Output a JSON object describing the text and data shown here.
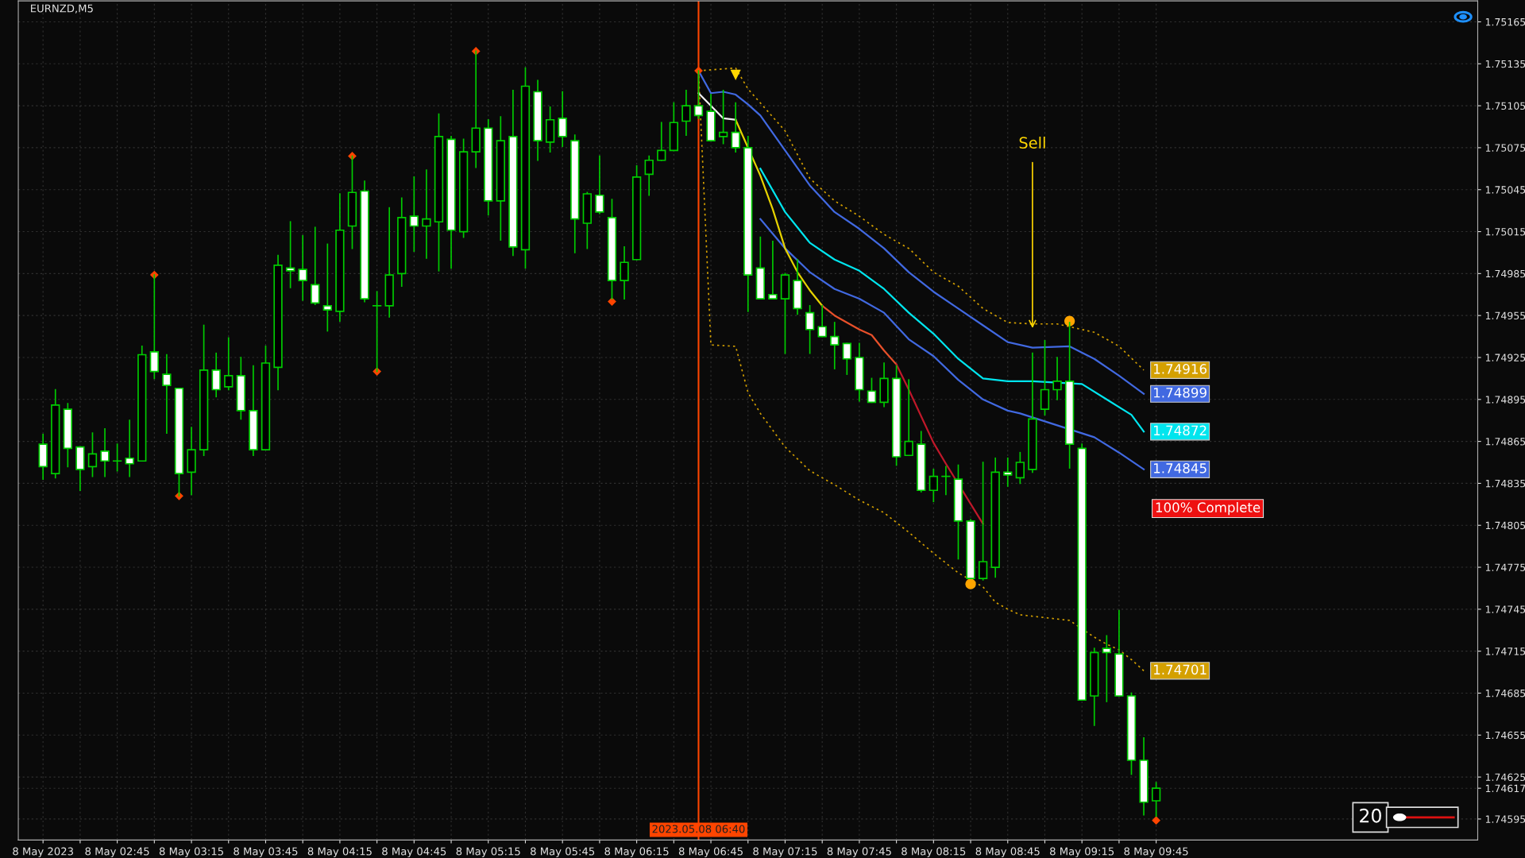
{
  "chart_data": {
    "type": "candlestick",
    "title": "EURNZD,M5",
    "color": "#00cc00",
    "x": [
      "2023-05-08T02:15",
      "2023-05-08T02:20",
      "2023-05-08T02:25",
      "2023-05-08T02:30",
      "2023-05-08T02:35",
      "2023-05-08T02:40",
      "2023-05-08T02:45",
      "2023-05-08T02:50",
      "2023-05-08T02:55",
      "2023-05-08T03:00",
      "2023-05-08T03:05",
      "2023-05-08T03:10",
      "2023-05-08T03:15",
      "2023-05-08T03:20",
      "2023-05-08T03:25",
      "2023-05-08T03:30",
      "2023-05-08T03:35",
      "2023-05-08T03:40",
      "2023-05-08T03:45",
      "2023-05-08T03:50",
      "2023-05-08T03:55",
      "2023-05-08T04:00",
      "2023-05-08T04:05",
      "2023-05-08T04:10",
      "2023-05-08T04:15",
      "2023-05-08T04:20",
      "2023-05-08T04:25",
      "2023-05-08T04:30",
      "2023-05-08T04:35",
      "2023-05-08T04:40",
      "2023-05-08T04:45",
      "2023-05-08T04:50",
      "2023-05-08T04:55",
      "2023-05-08T05:00",
      "2023-05-08T05:05",
      "2023-05-08T05:10",
      "2023-05-08T05:15",
      "2023-05-08T05:20",
      "2023-05-08T05:25",
      "2023-05-08T05:30",
      "2023-05-08T05:35",
      "2023-05-08T05:40",
      "2023-05-08T05:45",
      "2023-05-08T05:50",
      "2023-05-08T05:55",
      "2023-05-08T06:00",
      "2023-05-08T06:05",
      "2023-05-08T06:10",
      "2023-05-08T06:15",
      "2023-05-08T06:20",
      "2023-05-08T06:25",
      "2023-05-08T06:30",
      "2023-05-08T06:35",
      "2023-05-08T06:40",
      "2023-05-08T06:45",
      "2023-05-08T06:50",
      "2023-05-08T06:55",
      "2023-05-08T07:00",
      "2023-05-08T07:05",
      "2023-05-08T07:10",
      "2023-05-08T07:15",
      "2023-05-08T07:20",
      "2023-05-08T07:25",
      "2023-05-08T07:30",
      "2023-05-08T07:35",
      "2023-05-08T07:40",
      "2023-05-08T07:45",
      "2023-05-08T07:50",
      "2023-05-08T07:55",
      "2023-05-08T08:00",
      "2023-05-08T08:05",
      "2023-05-08T08:10",
      "2023-05-08T08:15",
      "2023-05-08T08:20",
      "2023-05-08T08:25",
      "2023-05-08T08:30",
      "2023-05-08T08:35",
      "2023-05-08T08:40",
      "2023-05-08T08:45",
      "2023-05-08T08:50",
      "2023-05-08T08:55",
      "2023-05-08T09:00",
      "2023-05-08T09:05",
      "2023-05-08T09:10",
      "2023-05-08T09:15",
      "2023-05-08T09:20",
      "2023-05-08T09:25",
      "2023-05-08T09:30",
      "2023-05-08T09:35",
      "2023-05-08T09:40",
      "2023-05-08T09:45"
    ],
    "ohlc": [
      [
        1.74863,
        1.7487,
        1.74838,
        1.74847
      ],
      [
        1.74842,
        1.74902,
        1.74839,
        1.74891
      ],
      [
        1.74888,
        1.74892,
        1.74847,
        1.7486
      ],
      [
        1.74861,
        1.74861,
        1.7483,
        1.74845
      ],
      [
        1.74847,
        1.74871,
        1.7484,
        1.74856
      ],
      [
        1.74858,
        1.74874,
        1.7484,
        1.74851
      ],
      [
        1.74851,
        1.74863,
        1.74844,
        1.74851
      ],
      [
        1.74853,
        1.7488,
        1.7484,
        1.74849
      ],
      [
        1.74851,
        1.74933,
        1.74851,
        1.74927
      ],
      [
        1.74929,
        1.74984,
        1.7491,
        1.74915
      ],
      [
        1.74913,
        1.74927,
        1.74871,
        1.74905
      ],
      [
        1.74903,
        1.74903,
        1.74826,
        1.74842
      ],
      [
        1.74843,
        1.74875,
        1.74827,
        1.74859
      ],
      [
        1.74859,
        1.74948,
        1.74855,
        1.74916
      ],
      [
        1.74916,
        1.74928,
        1.74897,
        1.74902
      ],
      [
        1.74904,
        1.74939,
        1.74902,
        1.74912
      ],
      [
        1.74912,
        1.74925,
        1.74881,
        1.74887
      ],
      [
        1.74887,
        1.74919,
        1.74855,
        1.74859
      ],
      [
        1.74859,
        1.74933,
        1.74859,
        1.74921
      ],
      [
        1.74918,
        1.74998,
        1.74902,
        1.74991
      ],
      [
        1.74989,
        1.75022,
        1.74975,
        1.74987
      ],
      [
        1.74988,
        1.75012,
        1.74966,
        1.7498
      ],
      [
        1.74977,
        1.75018,
        1.74963,
        1.74964
      ],
      [
        1.74962,
        1.75006,
        1.74944,
        1.74959
      ],
      [
        1.74958,
        1.75042,
        1.74951,
        1.75016
      ],
      [
        1.75019,
        1.75069,
        1.75003,
        1.75043
      ],
      [
        1.75044,
        1.75051,
        1.74965,
        1.74967
      ],
      [
        1.74962,
        1.74972,
        1.74915,
        1.74962
      ],
      [
        1.74962,
        1.75032,
        1.74954,
        1.74984
      ],
      [
        1.74985,
        1.75039,
        1.74976,
        1.75025
      ],
      [
        1.75026,
        1.75054,
        1.75001,
        1.75019
      ],
      [
        1.75019,
        1.75059,
        1.74996,
        1.75024
      ],
      [
        1.75022,
        1.75099,
        1.74987,
        1.75083
      ],
      [
        1.75081,
        1.75083,
        1.74989,
        1.75016
      ],
      [
        1.75015,
        1.75081,
        1.75011,
        1.75072
      ],
      [
        1.75072,
        1.75144,
        1.75061,
        1.75089
      ],
      [
        1.75089,
        1.75095,
        1.75027,
        1.75037
      ],
      [
        1.75037,
        1.75097,
        1.75009,
        1.7508
      ],
      [
        1.75083,
        1.75116,
        1.74998,
        1.75004
      ],
      [
        1.75002,
        1.75132,
        1.74989,
        1.75119
      ],
      [
        1.75115,
        1.75123,
        1.75066,
        1.7508
      ],
      [
        1.75079,
        1.75104,
        1.75072,
        1.75095
      ],
      [
        1.75096,
        1.75115,
        1.75076,
        1.75083
      ],
      [
        1.7508,
        1.75084,
        1.75,
        1.75024
      ],
      [
        1.75021,
        1.75043,
        1.75003,
        1.75042
      ],
      [
        1.75041,
        1.75069,
        1.75028,
        1.75029
      ],
      [
        1.75025,
        1.75038,
        1.74967,
        1.7498
      ],
      [
        1.7498,
        1.75004,
        1.74967,
        1.74993
      ],
      [
        1.74995,
        1.75062,
        1.74995,
        1.75054
      ],
      [
        1.75056,
        1.75069,
        1.75041,
        1.75066
      ],
      [
        1.75066,
        1.75093,
        1.75066,
        1.75073
      ],
      [
        1.75073,
        1.75107,
        1.75073,
        1.75093
      ],
      [
        1.75094,
        1.75116,
        1.75084,
        1.75105
      ],
      [
        1.75105,
        1.7513,
        1.75096,
        1.75098
      ],
      [
        1.75101,
        1.75113,
        1.7508,
        1.7508
      ],
      [
        1.75083,
        1.75116,
        1.75078,
        1.75086
      ],
      [
        1.75086,
        1.75107,
        1.75072,
        1.75075
      ],
      [
        1.75075,
        1.75083,
        1.74958,
        1.74984
      ],
      [
        1.74989,
        1.75011,
        1.74967,
        1.74967
      ],
      [
        1.7497,
        1.75008,
        1.74967,
        1.74967
      ],
      [
        1.74967,
        1.74985,
        1.74928,
        1.74984
      ],
      [
        1.7498,
        1.74995,
        1.74956,
        1.7496
      ],
      [
        1.74957,
        1.74962,
        1.74928,
        1.74945
      ],
      [
        1.74947,
        1.74962,
        1.7494,
        1.7494
      ],
      [
        1.7494,
        1.7495,
        1.74917,
        1.74934
      ],
      [
        1.74935,
        1.74935,
        1.74913,
        1.74924
      ],
      [
        1.74925,
        1.74935,
        1.74894,
        1.74902
      ],
      [
        1.74901,
        1.7491,
        1.74893,
        1.74893
      ],
      [
        1.74893,
        1.74921,
        1.7489,
        1.7491
      ],
      [
        1.7491,
        1.74919,
        1.74848,
        1.74854
      ],
      [
        1.74855,
        1.74909,
        1.74855,
        1.74865
      ],
      [
        1.74863,
        1.74872,
        1.74829,
        1.7483
      ],
      [
        1.7483,
        1.74845,
        1.74822,
        1.7484
      ],
      [
        1.7484,
        1.74847,
        1.74827,
        1.7484
      ],
      [
        1.74838,
        1.74848,
        1.74781,
        1.74808
      ],
      [
        1.74808,
        1.74809,
        1.74767,
        1.74767
      ],
      [
        1.74767,
        1.7485,
        1.74766,
        1.74779
      ],
      [
        1.74775,
        1.74853,
        1.74768,
        1.74843
      ],
      [
        1.74843,
        1.74853,
        1.74833,
        1.74841
      ],
      [
        1.74839,
        1.74857,
        1.74835,
        1.7485
      ],
      [
        1.74845,
        1.74928,
        1.74843,
        1.74881
      ],
      [
        1.74888,
        1.74937,
        1.74884,
        1.74902
      ],
      [
        1.74902,
        1.74925,
        1.74895,
        1.74908
      ],
      [
        1.74908,
        1.7495,
        1.74846,
        1.74863
      ],
      [
        1.7486,
        1.74863,
        1.7468,
        1.7468
      ],
      [
        1.74683,
        1.74717,
        1.74662,
        1.74714
      ],
      [
        1.74717,
        1.74726,
        1.74679,
        1.74714
      ],
      [
        1.74713,
        1.74744,
        1.74683,
        1.74683
      ],
      [
        1.74683,
        1.74685,
        1.74627,
        1.74637
      ],
      [
        1.74637,
        1.74653,
        1.74598,
        1.74607
      ],
      [
        1.74608,
        1.74621,
        1.74597,
        1.74617
      ]
    ],
    "series": [
      {
        "type": "line",
        "color": "#d4a000",
        "line_style": "dotted",
        "x": [
          "2023-05-08T06:40",
          "2023-05-08T06:55",
          "2023-05-08T07:00",
          "2023-05-08T07:15",
          "2023-05-08T07:25",
          "2023-05-08T07:35",
          "2023-05-08T07:45",
          "2023-05-08T07:55",
          "2023-05-08T08:05",
          "2023-05-08T08:15",
          "2023-05-08T08:25",
          "2023-05-08T08:35",
          "2023-05-08T08:45",
          "2023-05-08T08:55",
          "2023-05-08T09:05",
          "2023-05-08T09:20",
          "2023-05-08T09:30",
          "2023-05-08T09:40"
        ],
        "values": [
          1.7513,
          1.75132,
          1.75117,
          1.75087,
          1.75053,
          1.75037,
          1.75026,
          1.75013,
          1.75003,
          1.74986,
          1.74976,
          1.7496,
          1.7495,
          1.74949,
          1.74949,
          1.74943,
          1.74933,
          1.74916
        ],
        "value_labels": [
          null,
          null,
          null,
          null,
          null,
          null,
          null,
          null,
          null,
          null,
          null,
          null,
          null,
          null,
          null,
          null,
          null,
          "1.74916"
        ]
      },
      {
        "type": "line",
        "color": "#d4a000",
        "line_style": "dotted",
        "x": [
          "2023-05-08T06:40",
          "2023-05-08T06:45",
          "2023-05-08T06:55",
          "2023-05-08T07:00",
          "2023-05-08T07:05",
          "2023-05-08T07:15",
          "2023-05-08T07:25",
          "2023-05-08T07:35",
          "2023-05-08T07:45",
          "2023-05-08T07:55",
          "2023-05-08T08:05",
          "2023-05-08T08:15",
          "2023-05-08T08:25",
          "2023-05-08T08:35",
          "2023-05-08T08:40",
          "2023-05-08T08:45",
          "2023-05-08T08:50",
          "2023-05-08T09:00",
          "2023-05-08T09:10",
          "2023-05-08T09:20",
          "2023-05-08T09:25",
          "2023-05-08T09:30",
          "2023-05-08T09:35",
          "2023-05-08T09:40"
        ],
        "values": [
          1.7513,
          1.74934,
          1.74933,
          1.749,
          1.74885,
          1.74861,
          1.74844,
          1.74834,
          1.74823,
          1.74814,
          1.748,
          1.74785,
          1.74771,
          1.74761,
          1.7475,
          1.74745,
          1.74741,
          1.74739,
          1.74737,
          1.74725,
          1.7472,
          1.74716,
          1.74709,
          1.74701
        ],
        "value_labels": [
          null,
          null,
          null,
          null,
          null,
          null,
          null,
          null,
          null,
          null,
          null,
          null,
          null,
          null,
          null,
          null,
          null,
          null,
          null,
          null,
          null,
          null,
          null,
          "1.74701"
        ]
      },
      {
        "type": "line",
        "color": "#4169e1",
        "x": [
          "2023-05-08T06:40",
          "2023-05-08T06:45",
          "2023-05-08T06:50",
          "2023-05-08T06:55",
          "2023-05-08T07:00",
          "2023-05-08T07:05",
          "2023-05-08T07:15",
          "2023-05-08T07:25",
          "2023-05-08T07:35",
          "2023-05-08T07:45",
          "2023-05-08T07:55",
          "2023-05-08T08:05",
          "2023-05-08T08:15",
          "2023-05-08T08:25",
          "2023-05-08T08:35",
          "2023-05-08T08:45",
          "2023-05-08T08:55",
          "2023-05-08T09:10",
          "2023-05-08T09:20",
          "2023-05-08T09:30",
          "2023-05-08T09:40"
        ],
        "values": [
          1.7513,
          1.75114,
          1.75115,
          1.75113,
          1.75106,
          1.75098,
          1.75073,
          1.75048,
          1.75029,
          1.75017,
          1.75003,
          1.74986,
          1.74972,
          1.7496,
          1.74948,
          1.74936,
          1.74932,
          1.74933,
          1.74924,
          1.74912,
          1.74899
        ],
        "value_labels": [
          null,
          null,
          null,
          null,
          null,
          null,
          null,
          null,
          null,
          null,
          null,
          null,
          null,
          null,
          null,
          null,
          null,
          null,
          null,
          null,
          "1.74899"
        ]
      },
      {
        "type": "line",
        "color": "#4169e1",
        "x": [
          "2023-05-08T07:05",
          "2023-05-08T07:15",
          "2023-05-08T07:25",
          "2023-05-08T07:35",
          "2023-05-08T07:45",
          "2023-05-08T07:55",
          "2023-05-08T08:05",
          "2023-05-08T08:15",
          "2023-05-08T08:25",
          "2023-05-08T08:35",
          "2023-05-08T08:45",
          "2023-05-08T08:50",
          "2023-05-08T09:20",
          "2023-05-08T09:30",
          "2023-05-08T09:40"
        ],
        "values": [
          1.75024,
          1.75003,
          1.74986,
          1.74974,
          1.74967,
          1.74957,
          1.74938,
          1.74926,
          1.74909,
          1.74895,
          1.74887,
          1.74885,
          1.74868,
          1.74857,
          1.74845
        ],
        "value_labels": [
          null,
          null,
          null,
          null,
          null,
          null,
          null,
          null,
          null,
          null,
          null,
          null,
          null,
          null,
          "1.74845"
        ]
      },
      {
        "type": "line",
        "color": "#00e5ee",
        "x": [
          "2023-05-08T07:05",
          "2023-05-08T07:15",
          "2023-05-08T07:25",
          "2023-05-08T07:35",
          "2023-05-08T07:45",
          "2023-05-08T07:55",
          "2023-05-08T08:05",
          "2023-05-08T08:15",
          "2023-05-08T08:25",
          "2023-05-08T08:35",
          "2023-05-08T08:45",
          "2023-05-08T08:55",
          "2023-05-08T09:15",
          "2023-05-08T09:25",
          "2023-05-08T09:35",
          "2023-05-08T09:40"
        ],
        "values": [
          1.7506,
          1.75029,
          1.75007,
          1.74995,
          1.74987,
          1.74974,
          1.74957,
          1.74942,
          1.74924,
          1.7491,
          1.74908,
          1.74908,
          1.74906,
          1.74895,
          1.74884,
          1.74872
        ],
        "value_labels": [
          null,
          null,
          null,
          null,
          null,
          null,
          null,
          null,
          null,
          null,
          null,
          null,
          null,
          null,
          null,
          "1.74872"
        ]
      },
      {
        "type": "line",
        "color": "#f0f0f0",
        "x": [
          "2023-05-08T06:40",
          "2023-05-08T06:50",
          "2023-05-08T06:55"
        ],
        "values": [
          1.75114,
          1.75096,
          1.75095
        ]
      },
      {
        "type": "line",
        "color": "#e6d200",
        "x": [
          "2023-05-08T06:55",
          "2023-05-08T07:05",
          "2023-05-08T07:10",
          "2023-05-08T07:15",
          "2023-05-08T07:20",
          "2023-05-08T07:25",
          "2023-05-08T07:30"
        ],
        "values": [
          1.75095,
          1.75055,
          1.75031,
          1.75003,
          1.74986,
          1.74973,
          1.74962
        ]
      },
      {
        "type": "line",
        "color": "#e8502a",
        "x": [
          "2023-05-08T07:30",
          "2023-05-08T07:35",
          "2023-05-08T07:40",
          "2023-05-08T07:45",
          "2023-05-08T07:50",
          "2023-05-08T07:55",
          "2023-05-08T08:00"
        ],
        "values": [
          1.74962,
          1.74955,
          1.7495,
          1.74945,
          1.74941,
          1.7493,
          1.7492
        ]
      },
      {
        "type": "line",
        "color": "#c0182a",
        "x": [
          "2023-05-08T08:00",
          "2023-05-08T08:05",
          "2023-05-08T08:10",
          "2023-05-08T08:15",
          "2023-05-08T08:20",
          "2023-05-08T08:35"
        ],
        "values": [
          1.7492,
          1.74902,
          1.74883,
          1.74864,
          1.74849,
          1.74806
        ]
      },
      {
        "type": "scatter",
        "marker": "diamond",
        "color": "#ff4500",
        "x": [
          "2023-05-08T03:00",
          "2023-05-08T03:10",
          "2023-05-08T04:20",
          "2023-05-08T04:30",
          "2023-05-08T05:10",
          "2023-05-08T06:05",
          "2023-05-08T06:40",
          "2023-05-08T09:45"
        ],
        "values": [
          1.74984,
          1.74826,
          1.75069,
          1.74915,
          1.75144,
          1.74965,
          1.7513,
          1.74594
        ]
      },
      {
        "type": "scatter",
        "marker": "circle",
        "color": "#ffa500",
        "x": [
          "2023-05-08T08:30",
          "2023-05-08T09:10"
        ],
        "values": [
          1.74763,
          1.74951
        ]
      },
      {
        "type": "scatter",
        "marker": "triangle",
        "color": "#ffd700",
        "x": [
          "2023-05-08T06:55"
        ],
        "values": [
          1.75127
        ]
      }
    ],
    "ref_lines": [
      {
        "axis": "x",
        "value": "2023-05-08T06:40",
        "label": "2023.05.08 06:40",
        "color": "#ff4500"
      }
    ],
    "annotations": [
      {
        "text": "Sell",
        "x": "2023-05-08T08:55",
        "y": 1.74946
      },
      "100% Complete",
      "20"
    ],
    "xlim": [
      "2023-05-08T02:05",
      "2023-05-08T11:55"
    ],
    "xticks": [
      {
        "value": "2023-05-08T02:15",
        "label": "8 May 2023"
      },
      {
        "value": "2023-05-08T02:30",
        "label": null
      },
      {
        "value": "2023-05-08T02:45",
        "label": "8 May 02:45"
      },
      {
        "value": "2023-05-08T03:00",
        "label": null
      },
      {
        "value": "2023-05-08T03:15",
        "label": "8 May 03:15"
      },
      {
        "value": "2023-05-08T03:30",
        "label": null
      },
      {
        "value": "2023-05-08T03:45",
        "label": "8 May 03:45"
      },
      {
        "value": "2023-05-08T04:00",
        "label": null
      },
      {
        "value": "2023-05-08T04:15",
        "label": "8 May 04:15"
      },
      {
        "value": "2023-05-08T04:30",
        "label": null
      },
      {
        "value": "2023-05-08T04:45",
        "label": "8 May 04:45"
      },
      {
        "value": "2023-05-08T05:00",
        "label": null
      },
      {
        "value": "2023-05-08T05:15",
        "label": "8 May 05:15"
      },
      {
        "value": "2023-05-08T05:30",
        "label": null
      },
      {
        "value": "2023-05-08T05:45",
        "label": "8 May 05:45"
      },
      {
        "value": "2023-05-08T06:00",
        "label": null
      },
      {
        "value": "2023-05-08T06:15",
        "label": "8 May 06:15"
      },
      {
        "value": "2023-05-08T06:30",
        "label": null
      },
      {
        "value": "2023-05-08T06:45",
        "label": "8 May 06:45"
      },
      {
        "value": "2023-05-08T07:00",
        "label": null
      },
      {
        "value": "2023-05-08T07:15",
        "label": "8 May 07:15"
      },
      {
        "value": "2023-05-08T07:30",
        "label": null
      },
      {
        "value": "2023-05-08T07:45",
        "label": "8 May 07:45"
      },
      {
        "value": "2023-05-08T08:00",
        "label": null
      },
      {
        "value": "2023-05-08T08:15",
        "label": "8 May 08:15"
      },
      {
        "value": "2023-05-08T08:30",
        "label": null
      },
      {
        "value": "2023-05-08T08:45",
        "label": "8 May 08:45"
      },
      {
        "value": "2023-05-08T09:00",
        "label": null
      },
      {
        "value": "2023-05-08T09:15",
        "label": "8 May 09:15"
      },
      {
        "value": "2023-05-08T09:30",
        "label": null
      },
      {
        "value": "2023-05-08T09:45",
        "label": "8 May 09:45"
      }
    ],
    "ylim": [
      1.7458,
      1.7518
    ],
    "yticks": [
      1.75165,
      1.75135,
      1.75105,
      1.75075,
      1.75045,
      1.75015,
      1.74985,
      1.74955,
      1.74925,
      1.74895,
      1.74865,
      1.74835,
      1.74805,
      1.74775,
      1.74745,
      1.74715,
      1.74685,
      1.74655,
      1.74625,
      1.74617,
      1.74595
    ],
    "grid": true
  }
}
